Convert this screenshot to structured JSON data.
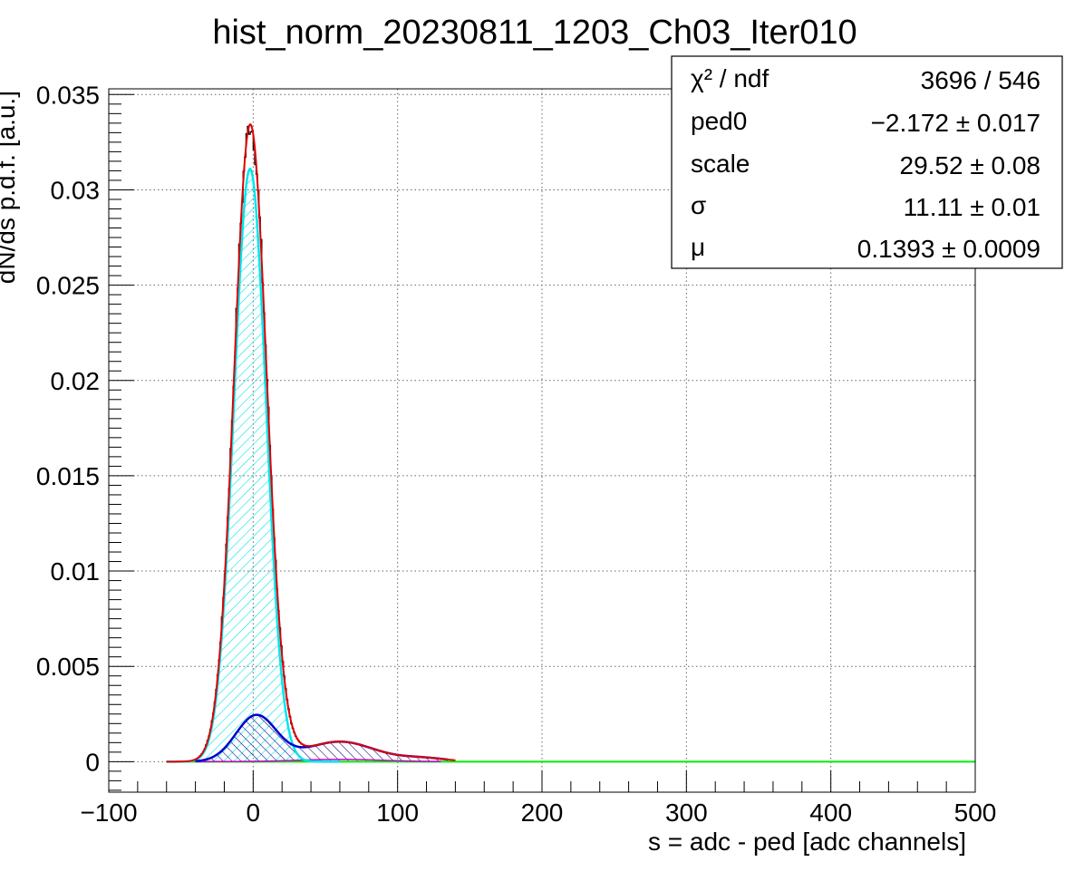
{
  "chart_data": {
    "type": "line",
    "title": "hist_norm_20230811_1203_Ch03_Iter010",
    "xlabel": "s = adc - ped [adc channels]",
    "ylabel": "dN/ds p.d.f. [a.u.]",
    "xlim": [
      -100,
      500
    ],
    "ylim": [
      -0.0016,
      0.0353
    ],
    "grid": true,
    "x_ticks": [
      -100,
      0,
      100,
      200,
      300,
      400,
      500
    ],
    "x_tick_labels": [
      "−100",
      "0",
      "100",
      "200",
      "300",
      "400",
      "500"
    ],
    "y_ticks": [
      0,
      0.005,
      0.01,
      0.015,
      0.02,
      0.025,
      0.03,
      0.035
    ],
    "y_tick_labels": [
      "0",
      "0.005",
      "0.01",
      "0.015",
      "0.02",
      "0.025",
      "0.03",
      "0.035"
    ],
    "fit_params": {
      "ped0": -2.172,
      "scale": 29.52,
      "sigma": 11.11,
      "mu": 0.1393
    },
    "stats": [
      {
        "name": "χ² / ndf",
        "value": "3696 / 546"
      },
      {
        "name": "ped0",
        "value": "−2.172 ± 0.017"
      },
      {
        "name": "scale",
        "value": "29.52 ± 0.08"
      },
      {
        "name": "σ",
        "value": "11.11 ± 0.01"
      },
      {
        "name": "μ",
        "value": "0.1393 ± 0.0009"
      }
    ],
    "series": [
      {
        "role": "histogram",
        "color": "#000000",
        "x_range": [
          -55,
          140
        ]
      },
      {
        "role": "total-fit",
        "color": "#e00000",
        "peak": 0.0334
      },
      {
        "role": "pedestal-component",
        "color": "#00e5ee",
        "peak": 0.0311
      },
      {
        "role": "photoelectron-component",
        "color": "#0000cc",
        "peak": 0.0024
      },
      {
        "role": "baseline",
        "color": "#00ee00",
        "value": 0
      }
    ]
  },
  "colors": {
    "frame": "#000000",
    "grid": "#666666",
    "histogram": "#000000",
    "total_fit": "#e00000",
    "pedestal": "#00e5ee",
    "photoelectron": "#0000cc",
    "baseline": "#00ee00",
    "magenta": "#cc00cc"
  }
}
